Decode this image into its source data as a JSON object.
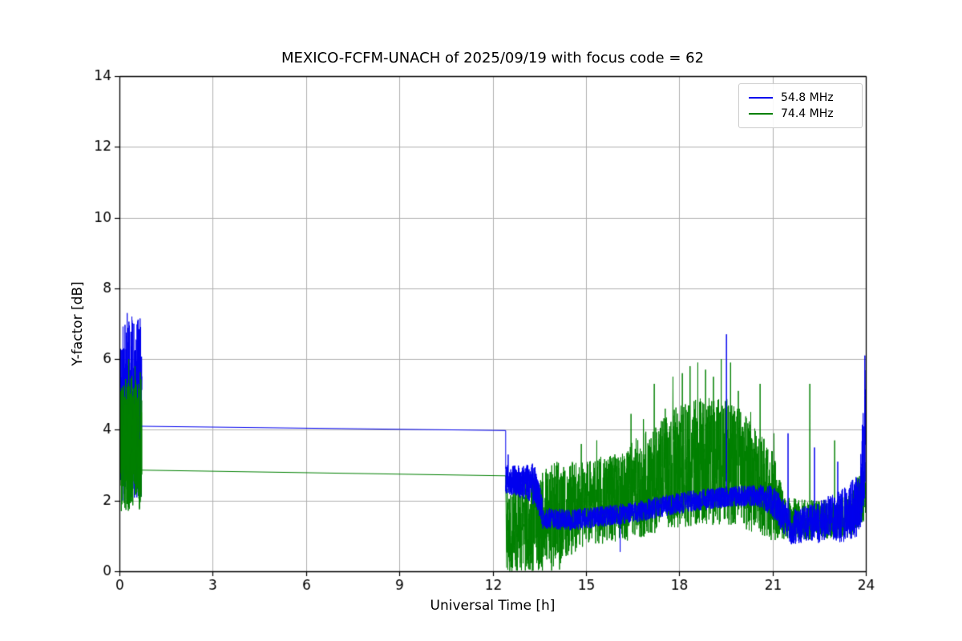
{
  "figure": {
    "background": "#ffffff"
  },
  "chart_data": {
    "type": "line",
    "title": "MEXICO-FCFM-UNACH of 2025/09/19 with focus code = 62",
    "xlabel": "Universal Time [h]",
    "ylabel": "Y-factor [dB]",
    "xlim": [
      0,
      24
    ],
    "ylim": [
      0,
      14
    ],
    "xticks": [
      0,
      3,
      6,
      9,
      12,
      15,
      18,
      21,
      24
    ],
    "yticks": [
      0,
      2,
      4,
      6,
      8,
      10,
      12,
      14
    ],
    "grid": true,
    "grid_color": "#b0b0b0",
    "axes_color": "#000000",
    "legend_position": "upper right",
    "series": [
      {
        "name": "54.8 MHz",
        "color": "#0000ee",
        "segments": [
          {
            "type": "noise",
            "z": 1,
            "seed": 11,
            "x0": 0.03,
            "x1": 0.72,
            "density": 10,
            "mid": [
              [
                0.03,
                4.6
              ],
              [
                0.72,
                4.6
              ]
            ],
            "amp": [
              [
                0.03,
                2.4
              ],
              [
                0.72,
                2.6
              ]
            ],
            "spikes": [
              [
                0.25,
                7.3
              ],
              [
                0.4,
                7.2
              ],
              [
                0.1,
                2.0
              ]
            ]
          },
          {
            "type": "line",
            "z": 3,
            "points": [
              [
                0.72,
                4.1
              ],
              [
                12.42,
                3.98
              ],
              [
                12.42,
                2.9
              ]
            ]
          },
          {
            "type": "noise",
            "z": 6,
            "seed": 12,
            "x0": 12.42,
            "x1": 13.6,
            "density": 8,
            "mid": [
              [
                12.42,
                2.6
              ],
              [
                13.35,
                2.5
              ],
              [
                13.6,
                1.7
              ]
            ],
            "amp": [
              [
                12.42,
                0.4
              ],
              [
                13.35,
                0.55
              ],
              [
                13.6,
                0.4
              ]
            ],
            "spikes": [
              [
                12.5,
                3.3
              ],
              [
                13.3,
                1.9
              ]
            ]
          },
          {
            "type": "noise",
            "z": 7,
            "seed": 13,
            "x0": 13.6,
            "x1": 24,
            "density": 6,
            "mid": [
              [
                13.6,
                1.5
              ],
              [
                14.5,
                1.45
              ],
              [
                15.5,
                1.55
              ],
              [
                16.5,
                1.65
              ],
              [
                17.5,
                1.85
              ],
              [
                18.5,
                2.0
              ],
              [
                19.5,
                2.1
              ],
              [
                20.5,
                2.15
              ],
              [
                21.0,
                2.0
              ],
              [
                21.3,
                1.6
              ],
              [
                21.6,
                1.25
              ],
              [
                22.5,
                1.4
              ],
              [
                23.3,
                1.6
              ],
              [
                23.8,
                1.9
              ],
              [
                24,
                4.0
              ]
            ],
            "amp": [
              [
                13.6,
                0.3
              ],
              [
                16.0,
                0.3
              ],
              [
                18.0,
                0.3
              ],
              [
                20.5,
                0.3
              ],
              [
                21.2,
                0.5
              ],
              [
                22.0,
                0.5
              ],
              [
                23.0,
                0.7
              ],
              [
                23.8,
                0.9
              ],
              [
                24,
                1.8
              ]
            ],
            "spikes": [
              [
                16.1,
                0.55
              ],
              [
                19.52,
                6.7
              ],
              [
                21.5,
                3.9
              ],
              [
                22.35,
                3.5
              ],
              [
                23.1,
                3.1
              ],
              [
                23.97,
                6.1
              ]
            ]
          }
        ]
      },
      {
        "name": "74.4 MHz",
        "color": "#008000",
        "segments": [
          {
            "type": "noise",
            "z": 2,
            "seed": 21,
            "x0": 0.03,
            "x1": 0.72,
            "density": 10,
            "mid": [
              [
                0.03,
                3.6
              ],
              [
                0.72,
                3.7
              ]
            ],
            "amp": [
              [
                0.03,
                1.9
              ],
              [
                0.72,
                2.0
              ]
            ],
            "spikes": [
              [
                0.06,
                1.7
              ],
              [
                0.3,
                6.0
              ],
              [
                0.5,
                5.8
              ]
            ]
          },
          {
            "type": "line",
            "z": 4,
            "points": [
              [
                0.72,
                2.86
              ],
              [
                12.42,
                2.7
              ],
              [
                12.45,
                0.1
              ]
            ]
          },
          {
            "type": "noise",
            "z": 5,
            "seed": 22,
            "x0": 12.45,
            "x1": 24,
            "density": 6,
            "mid": [
              [
                12.45,
                1.3
              ],
              [
                13.2,
                1.4
              ],
              [
                14.0,
                1.6
              ],
              [
                15.0,
                1.9
              ],
              [
                16.0,
                2.1
              ],
              [
                17.0,
                2.5
              ],
              [
                17.8,
                2.9
              ],
              [
                18.6,
                3.1
              ],
              [
                19.6,
                3.1
              ],
              [
                20.3,
                2.7
              ],
              [
                21.0,
                2.1
              ],
              [
                21.4,
                1.5
              ],
              [
                22.5,
                1.45
              ],
              [
                23.5,
                1.55
              ],
              [
                24,
                2.3
              ]
            ],
            "amp": [
              [
                12.45,
                1.3
              ],
              [
                13.2,
                1.4
              ],
              [
                14.0,
                1.5
              ],
              [
                15.0,
                1.2
              ],
              [
                16.0,
                1.3
              ],
              [
                17.0,
                1.5
              ],
              [
                17.8,
                1.7
              ],
              [
                18.6,
                1.8
              ],
              [
                19.6,
                1.8
              ],
              [
                20.3,
                1.6
              ],
              [
                21.0,
                1.3
              ],
              [
                21.4,
                0.6
              ],
              [
                22.5,
                0.55
              ],
              [
                23.5,
                0.6
              ],
              [
                24,
                0.9
              ]
            ],
            "spikes": [
              [
                12.55,
                0.02
              ],
              [
                12.8,
                0.02
              ],
              [
                13.05,
                0.02
              ],
              [
                13.3,
                0.02
              ],
              [
                13.6,
                0.02
              ],
              [
                13.9,
                0.02
              ],
              [
                14.15,
                0.05
              ],
              [
                14.85,
                3.6
              ],
              [
                15.35,
                3.7
              ],
              [
                16.45,
                4.45
              ],
              [
                16.85,
                4.3
              ],
              [
                17.2,
                5.3
              ],
              [
                17.55,
                4.6
              ],
              [
                17.8,
                5.5
              ],
              [
                18.1,
                5.6
              ],
              [
                18.35,
                5.8
              ],
              [
                18.6,
                5.9
              ],
              [
                18.85,
                5.7
              ],
              [
                19.1,
                5.5
              ],
              [
                19.35,
                6.0
              ],
              [
                19.65,
                5.9
              ],
              [
                19.9,
                5.1
              ],
              [
                20.3,
                4.5
              ],
              [
                20.6,
                5.3
              ],
              [
                21.05,
                3.9
              ],
              [
                22.2,
                5.3
              ],
              [
                23.0,
                3.7
              ]
            ]
          }
        ]
      }
    ]
  }
}
